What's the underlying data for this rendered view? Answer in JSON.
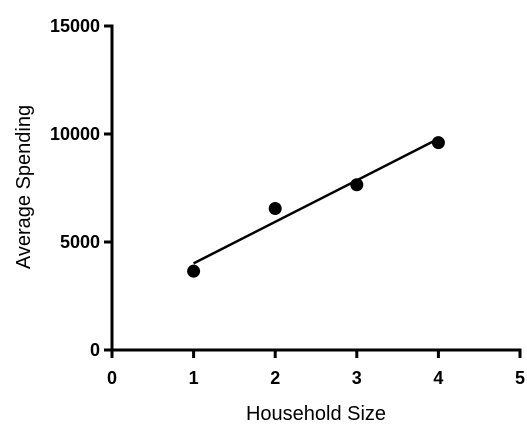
{
  "chart_data": {
    "type": "scatter",
    "xlabel": "Household Size",
    "ylabel": "Average Spending",
    "xlim": [
      0,
      5
    ],
    "ylim": [
      0,
      15000
    ],
    "x_ticks": [
      0,
      1,
      2,
      3,
      4,
      5
    ],
    "y_ticks": [
      0,
      5000,
      10000,
      15000
    ],
    "x_tick_labels": [
      "0",
      "1",
      "2",
      "3",
      "4",
      "5"
    ],
    "y_tick_labels": [
      "0",
      "5000",
      "10000",
      "15000"
    ],
    "grid": false,
    "series": [
      {
        "points": [
          {
            "x": 1,
            "y": 3650
          },
          {
            "x": 2,
            "y": 6550
          },
          {
            "x": 3,
            "y": 7650
          },
          {
            "x": 4,
            "y": 9600
          }
        ]
      }
    ],
    "fit_line": {
      "x": [
        1,
        4
      ],
      "y": [
        4010,
        9780
      ]
    },
    "colors": {
      "marker": "#000000",
      "line": "#000000",
      "axis": "#000000"
    }
  }
}
